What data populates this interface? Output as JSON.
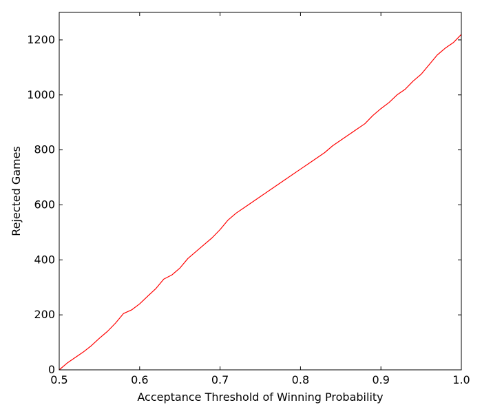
{
  "chart_data": {
    "type": "line",
    "title": "",
    "xlabel": "Acceptance Threshold of Winning Probability",
    "ylabel": "Rejected Games",
    "xlim": [
      0.5,
      1.0
    ],
    "ylim": [
      0,
      1300
    ],
    "xticks": [
      0.5,
      0.6,
      0.7,
      0.8,
      0.9,
      1.0
    ],
    "xtick_labels": [
      "0.5",
      "0.6",
      "0.7",
      "0.8",
      "0.9",
      "1.0"
    ],
    "yticks": [
      0,
      200,
      400,
      600,
      800,
      1000,
      1200
    ],
    "ytick_labels": [
      "0",
      "200",
      "400",
      "600",
      "800",
      "1000",
      "1200"
    ],
    "grid": false,
    "legend": "none",
    "series": [
      {
        "color": "#ff0000",
        "x": [
          0.5,
          0.51,
          0.52,
          0.53,
          0.54,
          0.55,
          0.56,
          0.57,
          0.58,
          0.59,
          0.6,
          0.61,
          0.62,
          0.63,
          0.64,
          0.65,
          0.66,
          0.67,
          0.68,
          0.69,
          0.7,
          0.71,
          0.72,
          0.73,
          0.74,
          0.75,
          0.76,
          0.77,
          0.78,
          0.79,
          0.8,
          0.81,
          0.82,
          0.83,
          0.84,
          0.85,
          0.86,
          0.87,
          0.88,
          0.89,
          0.9,
          0.91,
          0.92,
          0.93,
          0.94,
          0.95,
          0.96,
          0.97,
          0.98,
          0.99,
          1.0
        ],
        "y": [
          0,
          25,
          45,
          65,
          88,
          115,
          140,
          170,
          205,
          218,
          240,
          268,
          295,
          330,
          345,
          370,
          405,
          430,
          455,
          480,
          510,
          545,
          570,
          590,
          610,
          630,
          650,
          670,
          690,
          710,
          730,
          750,
          770,
          790,
          815,
          835,
          855,
          875,
          895,
          925,
          950,
          972,
          1000,
          1020,
          1050,
          1075,
          1110,
          1145,
          1170,
          1190,
          1220
        ]
      }
    ]
  }
}
